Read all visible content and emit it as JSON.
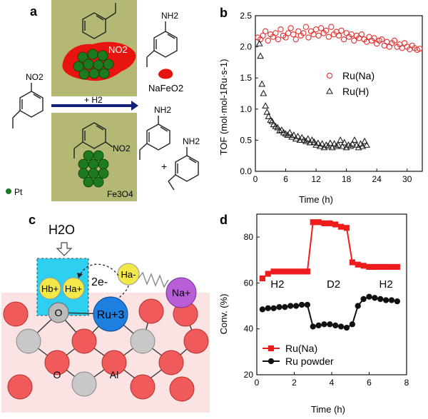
{
  "panels": {
    "a": {
      "label": "a",
      "reactant_group": "NO2",
      "product_top_group": "NH2",
      "catalyst_top_box_label": "NO2",
      "catalyst_top_byproduct": "NaFeO2",
      "arrow_label": "+ H2",
      "catalyst_bottom_group": "NO2",
      "catalyst_bottom_support": "Fe3O4",
      "product_bottom_1_group": "NH2",
      "product_bottom_2_group": "NH2",
      "plus": "+",
      "pt_legend": "Pt",
      "colors": {
        "box": "#b5b874",
        "red_blob": "#e8140f",
        "sphere": "#1e7a1e",
        "arrow": "#14207a"
      }
    },
    "c": {
      "label": "c",
      "water": "H2O",
      "electrons": "2e-",
      "atoms": {
        "hb": "Hb+",
        "ha_plus": "Ha+",
        "ha_minus": "Ha-",
        "na": "Na+",
        "o": "O",
        "ru": "Ru+3",
        "o_bottom": "O",
        "al": "Al"
      },
      "colors": {
        "cyan": "#2ed0f0",
        "ru": "#1d7fe0",
        "na": "#b85ed6",
        "h": "#f2e84a",
        "o_red": "#f05a5a",
        "al": "#bdbdbd"
      }
    }
  },
  "chart_data": [
    {
      "panel": "b",
      "type": "scatter",
      "xlabel": "Time (h)",
      "ylabel": "TOF (mol·mol-1Ru·s-1)",
      "xlim": [
        0,
        33
      ],
      "ylim": [
        0,
        2.5
      ],
      "xticks": [
        "0",
        "6",
        "12",
        "18",
        "24",
        "30"
      ],
      "yticks": [
        "0.0",
        "0.5",
        "1.0",
        "1.5",
        "2.0",
        "2.5"
      ],
      "legend_position": "center-right",
      "series": [
        {
          "name": "Ru(Na)",
          "marker": "circle",
          "color": "#e33030",
          "x": [
            0.5,
            1,
            1.5,
            2,
            2.5,
            3,
            3.5,
            4,
            4.5,
            5,
            5.5,
            6,
            6.5,
            7,
            7.5,
            8,
            8.5,
            9,
            9.5,
            10,
            10.5,
            11,
            11.5,
            12,
            12.5,
            13,
            13.5,
            14,
            14.5,
            15,
            15.5,
            16,
            16.5,
            17,
            17.5,
            18,
            18.5,
            19,
            19.5,
            20,
            20.5,
            21,
            21.5,
            22,
            22.5,
            23,
            23.5,
            24,
            24.5,
            25,
            25.5,
            26,
            26.5,
            27,
            27.5,
            28,
            28.5,
            29,
            29.5,
            30,
            30.5,
            31,
            31.5,
            32,
            32.5
          ],
          "y": [
            2.15,
            2.12,
            2.18,
            2.25,
            2.1,
            2.2,
            2.16,
            2.22,
            2.12,
            2.28,
            2.18,
            2.15,
            2.22,
            2.3,
            2.2,
            2.12,
            2.25,
            2.18,
            2.22,
            2.32,
            2.15,
            2.25,
            2.2,
            2.28,
            2.18,
            2.3,
            2.22,
            2.26,
            2.16,
            2.32,
            2.2,
            2.24,
            2.18,
            2.26,
            2.12,
            2.22,
            2.16,
            2.2,
            2.1,
            2.18,
            2.14,
            2.2,
            2.12,
            2.08,
            2.16,
            2.1,
            2.14,
            2.05,
            2.1,
            2.12,
            2.02,
            2.08,
            2.0,
            2.06,
            2.1,
            2.0,
            2.04,
            1.98,
            2.06,
            2.0,
            1.96,
            2.02,
            1.98,
            1.95,
            1.97
          ]
        },
        {
          "name": "Ru(H)",
          "marker": "triangle",
          "color": "#222222",
          "x": [
            0.8,
            1,
            1.3,
            1.6,
            2,
            2.3,
            2.6,
            3,
            3.3,
            3.6,
            4,
            4.4,
            4.8,
            5.2,
            5.6,
            6,
            6.4,
            6.8,
            7.2,
            7.6,
            8,
            8.4,
            8.8,
            9.2,
            9.6,
            10,
            10.4,
            10.8,
            11.2,
            11.6,
            12,
            12.4,
            12.8,
            13.2,
            13.6,
            14,
            14.4,
            14.8,
            15.2,
            15.6,
            16,
            16.4,
            16.8,
            17.2,
            17.6,
            18,
            18.4,
            18.8,
            19.2,
            19.6,
            20,
            20.4,
            20.8,
            21.2,
            21.6,
            22
          ],
          "y": [
            2.05,
            1.85,
            1.4,
            1.25,
            1.05,
            0.95,
            0.88,
            0.82,
            0.8,
            0.75,
            0.72,
            0.7,
            0.65,
            0.66,
            0.62,
            0.6,
            0.58,
            0.62,
            0.55,
            0.58,
            0.52,
            0.56,
            0.5,
            0.54,
            0.5,
            0.48,
            0.52,
            0.46,
            0.5,
            0.47,
            0.42,
            0.45,
            0.4,
            0.44,
            0.38,
            0.42,
            0.4,
            0.45,
            0.38,
            0.44,
            0.4,
            0.42,
            0.5,
            0.4,
            0.46,
            0.38,
            0.42,
            0.4,
            0.44,
            0.5,
            0.42,
            0.38,
            0.44,
            0.4,
            0.48,
            0.42
          ]
        }
      ]
    },
    {
      "panel": "d",
      "type": "line",
      "xlabel": "Time (h)",
      "ylabel": "Conv. (%)",
      "xlim": [
        0,
        8
      ],
      "ylim": [
        20,
        90
      ],
      "xticks": [
        "0",
        "2",
        "4",
        "6",
        "8"
      ],
      "yticks": [
        "20",
        "40",
        "60",
        "80"
      ],
      "legend_position": "bottom-center",
      "annotations": [
        "H2",
        "D2",
        "H2"
      ],
      "series": [
        {
          "name": "Ru(Na)",
          "marker": "square",
          "color": "#ee1c1c",
          "x": [
            0.3,
            0.6,
            0.9,
            1.2,
            1.5,
            1.8,
            2.1,
            2.4,
            2.7,
            3.0,
            3.3,
            3.6,
            3.9,
            4.2,
            4.5,
            4.8,
            5.1,
            5.4,
            5.7,
            6.0,
            6.3,
            6.6,
            6.9,
            7.2,
            7.5
          ],
          "y": [
            62,
            64,
            65,
            65,
            65,
            65,
            65,
            65,
            65,
            86.5,
            86.5,
            86,
            86,
            85.5,
            84.5,
            84,
            69,
            68,
            67.5,
            67,
            67,
            67,
            67,
            67,
            67
          ]
        },
        {
          "name": "Ru powder",
          "marker": "circle",
          "color": "#111111",
          "x": [
            0.3,
            0.6,
            0.9,
            1.2,
            1.5,
            1.8,
            2.1,
            2.4,
            2.7,
            3.0,
            3.3,
            3.6,
            3.9,
            4.2,
            4.5,
            4.8,
            5.1,
            5.4,
            5.7,
            6.0,
            6.3,
            6.6,
            6.9,
            7.2,
            7.5
          ],
          "y": [
            48.5,
            49,
            49,
            49.5,
            49.5,
            50,
            50,
            50.5,
            50.5,
            41,
            41.5,
            42,
            42,
            41.5,
            41,
            40.5,
            42,
            50,
            53,
            54,
            53.5,
            53,
            52.5,
            52.5,
            52
          ]
        }
      ]
    }
  ]
}
